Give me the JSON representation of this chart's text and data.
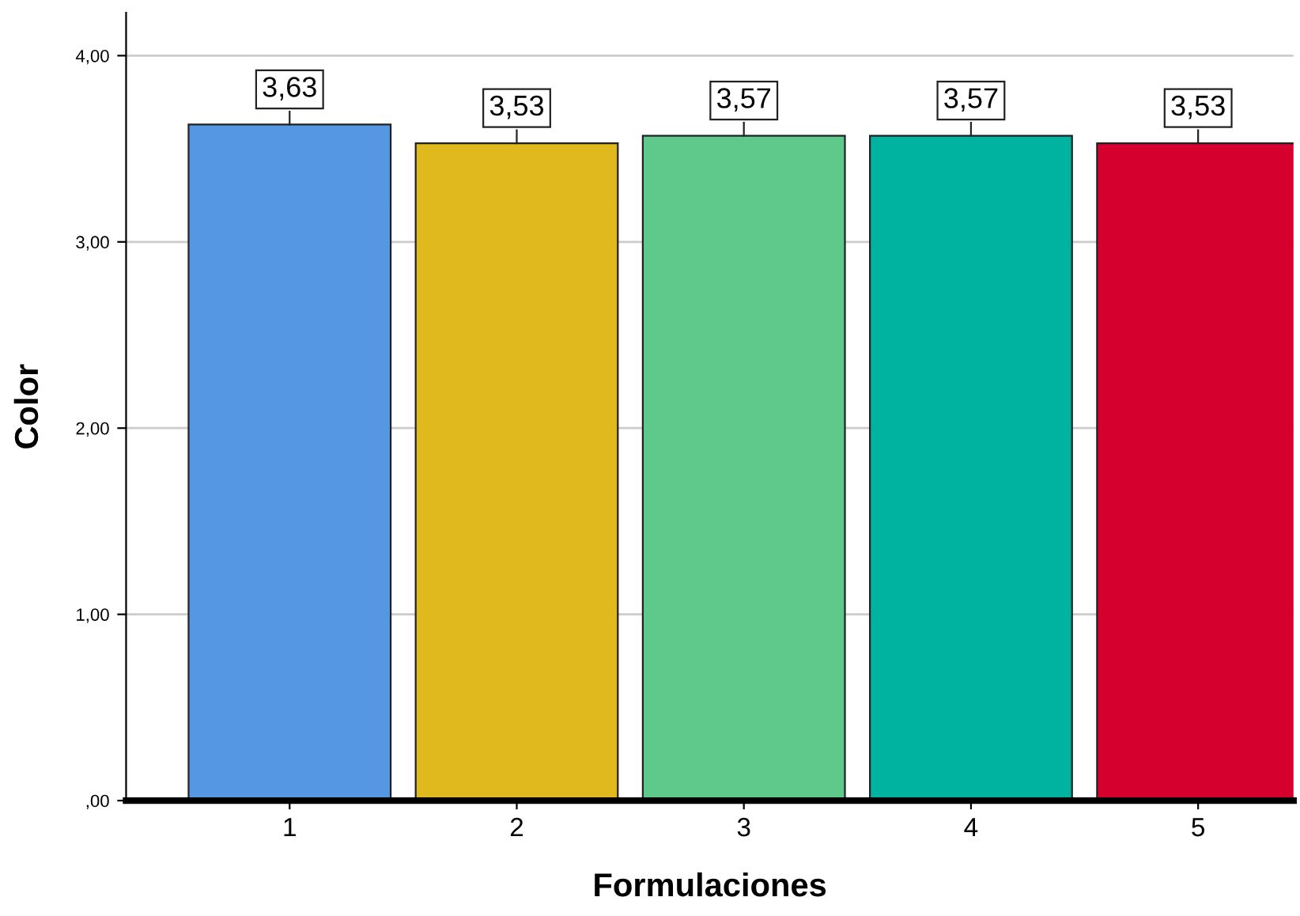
{
  "chart_data": {
    "type": "bar",
    "xlabel": "Formulaciones",
    "ylabel": "Color",
    "categories": [
      "1",
      "2",
      "3",
      "4",
      "5"
    ],
    "values": [
      3.63,
      3.53,
      3.57,
      3.57,
      3.53
    ],
    "colors": [
      "#5597e3",
      "#dfb91e",
      "#5ec98a",
      "#00b3a0",
      "#d6002f"
    ],
    "value_labels": [
      "3,63",
      "3,53",
      "3,57",
      "3,57",
      "3,53"
    ],
    "ylim": [
      0,
      4.23
    ],
    "yticks": [
      {
        "value": 0,
        "label": ",00"
      },
      {
        "value": 1,
        "label": "1,00"
      },
      {
        "value": 2,
        "label": "2,00"
      },
      {
        "value": 3,
        "label": "3,00"
      },
      {
        "value": 4,
        "label": "4,00"
      }
    ],
    "grid": "y",
    "legend": false
  }
}
